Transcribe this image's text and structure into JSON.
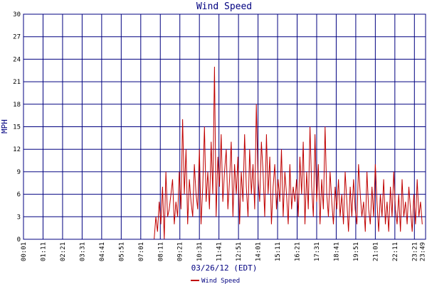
{
  "chart_data": {
    "type": "line",
    "title": "Wind Speed",
    "xlabel": "03/26/12 (EDT)",
    "ylabel": "MPH",
    "ylim": [
      0,
      30
    ],
    "yticks": [
      "0",
      "3",
      "6",
      "9",
      "12",
      "15",
      "18",
      "21",
      "24",
      "27",
      "30"
    ],
    "xticks": [
      "00:01",
      "01:11",
      "02:21",
      "03:31",
      "04:41",
      "05:51",
      "07:01",
      "08:11",
      "09:21",
      "10:31",
      "11:41",
      "12:51",
      "14:01",
      "15:11",
      "16:21",
      "17:31",
      "18:41",
      "19:51",
      "21:01",
      "22:11",
      "23:21",
      "23:49"
    ],
    "grid": true,
    "legend_position": "bottom-center",
    "colors": {
      "series": "#c00000",
      "grid": "#000080",
      "frame": "#000080"
    },
    "series": [
      {
        "name": "Wind Speed",
        "x_unit": "hours",
        "x": [
          0,
          7.8,
          7.9,
          8.0,
          8.1,
          8.2,
          8.3,
          8.4,
          8.5,
          8.6,
          8.7,
          8.8,
          8.9,
          9.0,
          9.1,
          9.2,
          9.3,
          9.4,
          9.5,
          9.6,
          9.7,
          9.8,
          9.9,
          10.0,
          10.1,
          10.2,
          10.3,
          10.4,
          10.5,
          10.6,
          10.7,
          10.8,
          10.9,
          11.0,
          11.1,
          11.2,
          11.3,
          11.4,
          11.5,
          11.6,
          11.7,
          11.8,
          11.9,
          12.0,
          12.1,
          12.2,
          12.3,
          12.4,
          12.5,
          12.6,
          12.7,
          12.8,
          12.9,
          13.0,
          13.1,
          13.2,
          13.3,
          13.4,
          13.5,
          13.6,
          13.7,
          13.8,
          13.9,
          14.0,
          14.1,
          14.2,
          14.3,
          14.4,
          14.5,
          14.6,
          14.7,
          14.8,
          14.9,
          15.0,
          15.1,
          15.2,
          15.3,
          15.4,
          15.5,
          15.6,
          15.7,
          15.8,
          15.9,
          16.0,
          16.1,
          16.2,
          16.3,
          16.4,
          16.5,
          16.6,
          16.7,
          16.8,
          16.9,
          17.0,
          17.1,
          17.2,
          17.3,
          17.4,
          17.5,
          17.6,
          17.7,
          17.8,
          17.9,
          18.0,
          18.1,
          18.2,
          18.3,
          18.4,
          18.5,
          18.6,
          18.7,
          18.8,
          18.9,
          19.0,
          19.1,
          19.2,
          19.3,
          19.4,
          19.5,
          19.6,
          19.7,
          19.8,
          19.9,
          20.0,
          20.1,
          20.2,
          20.3,
          20.4,
          20.5,
          20.6,
          20.7,
          20.8,
          20.9,
          21.0,
          21.1,
          21.2,
          21.3,
          21.4,
          21.5,
          21.6,
          21.7,
          21.8,
          21.9,
          22.0,
          22.1,
          22.2,
          22.3,
          22.4,
          22.5,
          22.6,
          22.7,
          22.8,
          22.9,
          23.0,
          23.1,
          23.2,
          23.3,
          23.4,
          23.5,
          23.6,
          23.7,
          23.8
        ],
        "values": [
          0,
          0,
          3,
          1,
          5,
          2,
          7,
          0,
          9,
          3,
          4,
          6,
          8,
          2,
          5,
          3,
          9,
          4,
          16,
          6,
          12,
          2,
          8,
          5,
          3,
          10,
          6,
          4,
          12,
          2,
          7,
          15,
          5,
          9,
          4,
          13,
          6,
          23,
          3,
          11,
          7,
          14,
          5,
          9,
          12,
          4,
          8,
          13,
          3,
          10,
          6,
          11,
          2,
          9,
          5,
          14,
          7,
          3,
          12,
          6,
          10,
          4,
          18,
          8,
          5,
          13,
          9,
          3,
          14,
          6,
          11,
          2,
          7,
          10,
          4,
          8,
          5,
          12,
          3,
          9,
          6,
          2,
          10,
          4,
          7,
          5,
          8,
          3,
          11,
          6,
          13,
          2,
          9,
          4,
          15,
          7,
          3,
          14,
          5,
          10,
          2,
          8,
          4,
          15,
          6,
          3,
          9,
          5,
          2,
          7,
          4,
          8,
          3,
          6,
          2,
          9,
          5,
          1,
          7,
          3,
          8,
          4,
          2,
          10,
          6,
          3,
          5,
          1,
          9,
          4,
          2,
          7,
          3,
          10,
          5,
          1,
          6,
          3,
          8,
          2,
          5,
          1,
          7,
          3,
          9,
          4,
          2,
          6,
          1,
          8,
          3,
          5,
          2,
          7,
          4,
          1,
          6,
          2,
          8,
          3,
          5,
          2
        ]
      }
    ]
  }
}
